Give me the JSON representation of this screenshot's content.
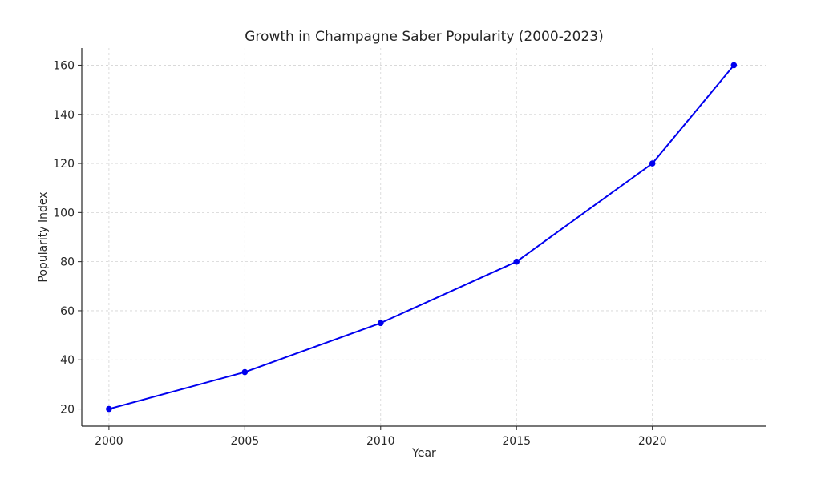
{
  "chart_data": {
    "type": "line",
    "title": "Growth in Champagne Saber Popularity (2000-2023)",
    "xlabel": "Year",
    "ylabel": "Popularity Index",
    "x": [
      2000,
      2005,
      2010,
      2015,
      2020,
      2023
    ],
    "series": [
      {
        "values": [
          20,
          35,
          55,
          80,
          120,
          160
        ],
        "color": "#0000ee",
        "marker": "circle"
      }
    ],
    "xticks": [
      "2000",
      "2005",
      "2010",
      "2015",
      "2020"
    ],
    "yticks": [
      "20",
      "40",
      "60",
      "80",
      "100",
      "120",
      "140",
      "160"
    ],
    "xlim": [
      1999,
      2024.2
    ],
    "ylim": [
      13,
      167
    ],
    "grid": true,
    "grid_style": "dashed",
    "legend": "none"
  }
}
